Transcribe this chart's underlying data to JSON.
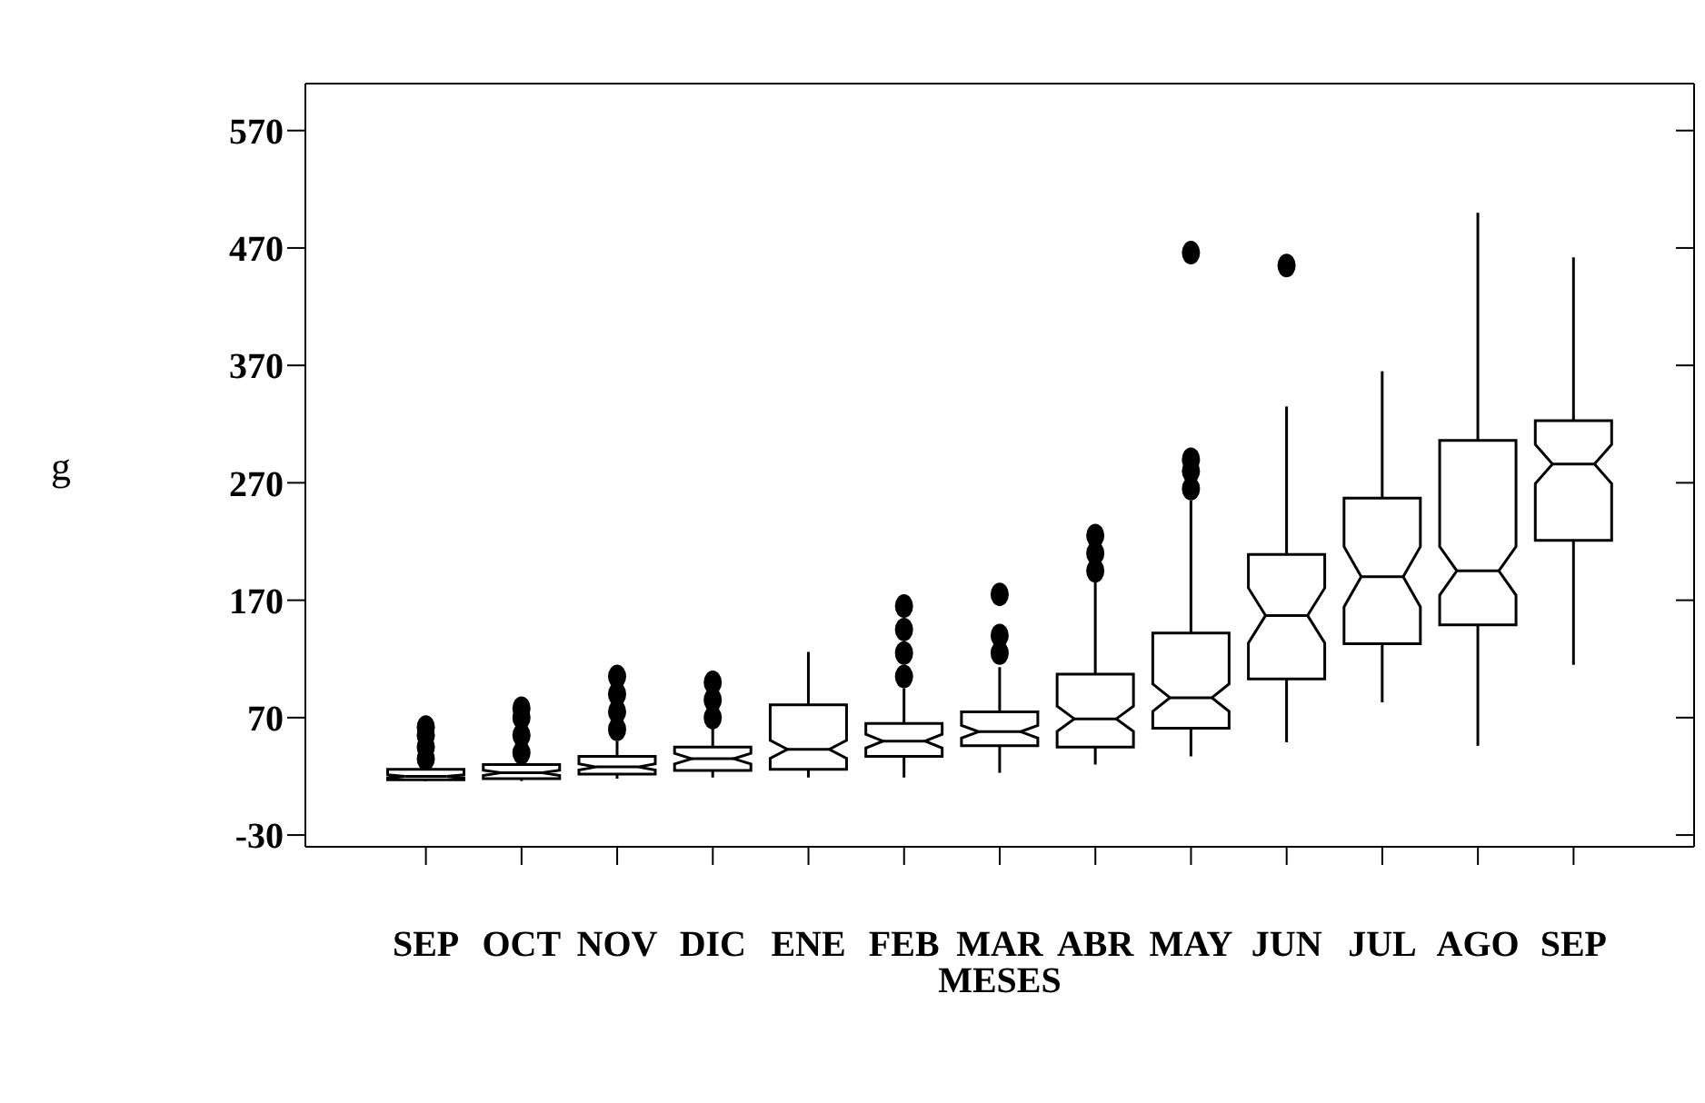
{
  "chart_data": {
    "type": "box",
    "xlabel": "MESES",
    "ylabel": "g",
    "categories": [
      "SEP",
      "OCT",
      "NOV",
      "DIC",
      "ENE",
      "FEB",
      "MAR",
      "ABR",
      "MAY",
      "JUN",
      "JUL",
      "AGO",
      "SEP"
    ],
    "boxes": [
      {
        "low": 16,
        "q1": 17,
        "median": 20,
        "q3": 26,
        "high": 30,
        "outliers": [
          35,
          45,
          55,
          62
        ]
      },
      {
        "low": 16,
        "q1": 18,
        "median": 23,
        "q3": 30,
        "high": 33,
        "outliers": [
          40,
          55,
          70,
          78
        ]
      },
      {
        "low": 18,
        "q1": 22,
        "median": 28,
        "q3": 37,
        "high": 50,
        "outliers": [
          60,
          75,
          90,
          105
        ]
      },
      {
        "low": 19,
        "q1": 25,
        "median": 35,
        "q3": 45,
        "high": 63,
        "outliers": [
          70,
          85,
          100
        ]
      },
      {
        "low": 19,
        "q1": 26,
        "median": 43,
        "q3": 81,
        "high": 126
      },
      {
        "low": 19,
        "q1": 37,
        "median": 50,
        "q3": 65,
        "high": 95,
        "outliers": [
          105,
          125,
          145,
          165
        ]
      },
      {
        "low": 23,
        "q1": 46,
        "median": 58,
        "q3": 75,
        "high": 113,
        "outliers": [
          125,
          140,
          175
        ]
      },
      {
        "low": 30,
        "q1": 45,
        "median": 69,
        "q3": 107,
        "high": 190,
        "outliers": [
          195,
          210,
          225
        ]
      },
      {
        "low": 37,
        "q1": 61,
        "median": 87,
        "q3": 142,
        "high": 255,
        "outliers": [
          265,
          280,
          290,
          466
        ]
      },
      {
        "low": 49,
        "q1": 103,
        "median": 157,
        "q3": 209,
        "high": 335,
        "outliers": [
          455
        ]
      },
      {
        "low": 83,
        "q1": 133,
        "median": 190,
        "q3": 257,
        "high": 365
      },
      {
        "low": 46,
        "q1": 149,
        "median": 195,
        "q3": 306,
        "high": 500
      },
      {
        "low": 115,
        "q1": 221,
        "median": 286,
        "q3": 323,
        "high": 462
      }
    ],
    "ylim": [
      -40,
      610
    ],
    "yticks": [
      -30,
      70,
      170,
      270,
      370,
      470,
      570
    ],
    "grid": false,
    "legend": false
  }
}
